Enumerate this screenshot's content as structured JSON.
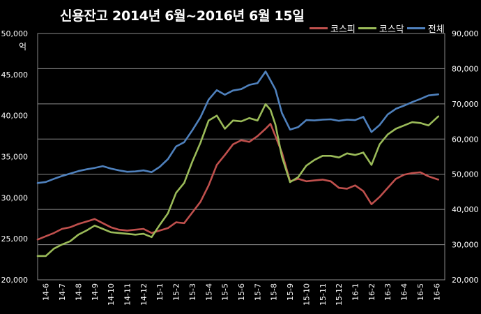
{
  "chart_data": {
    "type": "line",
    "title": "신용잔고 2014년 6월~2016년 6월 15일",
    "unit_label": "억",
    "grid": true,
    "legend_position": "top-right",
    "x_tick_labels": [
      "14-6",
      "14-7",
      "14-8",
      "14-9",
      "14-10",
      "14-11",
      "14-12",
      "15-1",
      "15-2",
      "15-3",
      "15-4",
      "15-5",
      "15-6",
      "15-7",
      "15-8",
      "15-9",
      "15-10",
      "15-11",
      "15-12",
      "16-1",
      "16-2",
      "16-3",
      "16-4",
      "16-5",
      "16-6"
    ],
    "left_axis": {
      "ylim": [
        20000,
        50000
      ],
      "ticks": [
        "20,000",
        "25,000",
        "30,000",
        "35,000",
        "40,000",
        "45,000",
        "50,000"
      ]
    },
    "right_axis": {
      "ylim": [
        20000,
        90000
      ],
      "ticks": [
        "20,000",
        "30,000",
        "40,000",
        "50,000",
        "60,000",
        "70,000",
        "80,000",
        "90,000"
      ]
    },
    "x_index": [
      0,
      0.5,
      1,
      1.5,
      2,
      2.5,
      3,
      3.5,
      4,
      4.5,
      5,
      5.5,
      6,
      6.5,
      7,
      7.5,
      8,
      8.5,
      9,
      9.5,
      10,
      10.5,
      11,
      11.5,
      12,
      12.5,
      13,
      13.5,
      14,
      14.3,
      14.6,
      15,
      15.5,
      16,
      16.5,
      17,
      17.5,
      18,
      18.5,
      19,
      19.5,
      20,
      20.5,
      21,
      21.5,
      22,
      22.5,
      23,
      23.5,
      24,
      24.6
    ],
    "series": [
      {
        "name": "코스피",
        "axis": "left",
        "color": "#c0504d",
        "values": [
          24900,
          25300,
          25700,
          26200,
          26400,
          26800,
          27100,
          27400,
          26900,
          26400,
          26100,
          26000,
          26100,
          26200,
          25700,
          26000,
          26300,
          27000,
          26900,
          28200,
          29500,
          31500,
          34000,
          35200,
          36500,
          37000,
          36800,
          37500,
          38400,
          39000,
          37500,
          35500,
          32000,
          32300,
          32000,
          32100,
          32200,
          32000,
          31200,
          31100,
          31500,
          30800,
          29200,
          30100,
          31200,
          32300,
          32800,
          33000,
          33100,
          32600,
          32200
        ]
      },
      {
        "name": "코스닥",
        "axis": "left",
        "color": "#9bbb59",
        "values": [
          22900,
          22900,
          23800,
          24300,
          24700,
          25500,
          26000,
          26600,
          26200,
          25800,
          25700,
          25600,
          25500,
          25600,
          25200,
          26700,
          28100,
          30600,
          31800,
          34400,
          36700,
          39400,
          40000,
          38400,
          39400,
          39300,
          39700,
          39400,
          41400,
          40700,
          38900,
          35000,
          31900,
          32500,
          33900,
          34600,
          35100,
          35100,
          34900,
          35400,
          35200,
          35500,
          34000,
          36500,
          37700,
          38400,
          38800,
          39200,
          39100,
          38800,
          39900
        ]
      },
      {
        "name": "전체",
        "axis": "right",
        "color": "#4f81bd",
        "values": [
          47500,
          47800,
          48700,
          49500,
          50200,
          50900,
          51400,
          51800,
          52300,
          51600,
          51100,
          50700,
          50800,
          51100,
          50600,
          52100,
          54300,
          57900,
          59100,
          62500,
          66200,
          71200,
          73900,
          72600,
          73800,
          74200,
          75400,
          75900,
          79200,
          76700,
          74100,
          67400,
          62700,
          63400,
          65400,
          65300,
          65500,
          65600,
          65200,
          65500,
          65400,
          66300,
          62000,
          64000,
          67000,
          68600,
          69500,
          70500,
          71400,
          72400,
          72700
        ]
      }
    ]
  }
}
